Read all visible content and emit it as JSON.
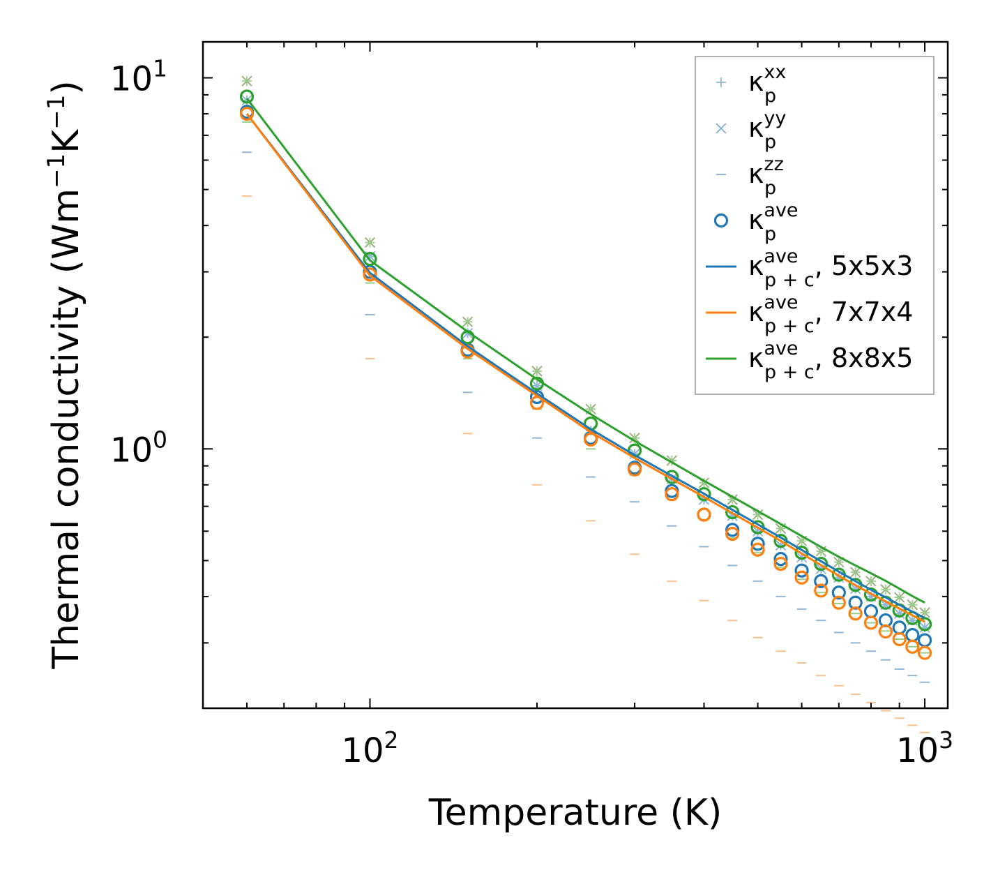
{
  "chart_data": {
    "type": "scatter",
    "title": "",
    "xlabel": "Temperature (K)",
    "ylabel": {
      "main": "Thermal conductivity (Wm",
      "sup1": "−1",
      "mid": "K",
      "sup2": "−1",
      "close": ")"
    },
    "xscale": "log",
    "yscale": "log",
    "xlim": [
      50,
      1100
    ],
    "ylim": [
      0.2,
      12.5
    ],
    "x_ticks": [
      {
        "value": 100,
        "base": "10",
        "exp": "2"
      },
      {
        "value": 1000,
        "base": "10",
        "exp": "3"
      }
    ],
    "y_ticks": [
      {
        "value": 1,
        "base": "10",
        "exp": "0"
      },
      {
        "value": 10,
        "base": "10",
        "exp": "1"
      }
    ],
    "legend_position": "top-right",
    "temperatures": [
      60,
      100,
      150,
      200,
      250,
      300,
      350,
      400,
      450,
      500,
      550,
      600,
      650,
      700,
      750,
      800,
      850,
      900,
      950,
      1000
    ],
    "legend": [
      {
        "marker": "plus",
        "color": "#8fb7d6",
        "label_base": "κ",
        "sub": "p",
        "sup": "xx",
        "suffix": ""
      },
      {
        "marker": "cross",
        "color": "#8fb7d6",
        "label_base": "κ",
        "sub": "p",
        "sup": "yy",
        "suffix": ""
      },
      {
        "marker": "dash",
        "color": "#8fb7d6",
        "label_base": "κ",
        "sub": "p",
        "sup": "zz",
        "suffix": ""
      },
      {
        "marker": "circle",
        "color": "#1f77b4",
        "label_base": "κ",
        "sub": "p",
        "sup": "ave",
        "suffix": ""
      },
      {
        "marker": "line",
        "color": "#1f77b4",
        "label_base": "κ",
        "sub": "p + c",
        "sup": "ave",
        "suffix": ", 5x5x3"
      },
      {
        "marker": "line",
        "color": "#ff7f0e",
        "label_base": "κ",
        "sub": "p + c",
        "sup": "ave",
        "suffix": ", 7x7x4"
      },
      {
        "marker": "line",
        "color": "#2ca02c",
        "label_base": "κ",
        "sub": "p + c",
        "sup": "ave",
        "suffix": ", 8x8x5"
      }
    ],
    "series": [
      {
        "name": "5x5x3",
        "color": "#1f77b4",
        "light_color": "#8fb7d6",
        "kxx": [
          8.7,
          3.3,
          2.05,
          1.48,
          1.12,
          0.97,
          0.83,
          0.73,
          0.66,
          0.6,
          0.55,
          0.51,
          0.475,
          0.45,
          0.42,
          0.4,
          0.38,
          0.36,
          0.345,
          0.33
        ],
        "kyy": [
          8.7,
          3.3,
          2.05,
          1.48,
          1.12,
          0.97,
          0.83,
          0.73,
          0.66,
          0.6,
          0.55,
          0.51,
          0.475,
          0.45,
          0.42,
          0.4,
          0.38,
          0.36,
          0.345,
          0.33
        ],
        "kzz": [
          6.3,
          2.3,
          1.42,
          1.07,
          0.84,
          0.72,
          0.62,
          0.545,
          0.485,
          0.44,
          0.4,
          0.37,
          0.345,
          0.32,
          0.3,
          0.285,
          0.27,
          0.255,
          0.245,
          0.235
        ],
        "kave": [
          8.1,
          3.0,
          1.85,
          1.38,
          1.07,
          0.89,
          0.77,
          0.665,
          0.605,
          0.555,
          0.505,
          0.47,
          0.44,
          0.41,
          0.385,
          0.365,
          0.345,
          0.33,
          0.315,
          0.305
        ],
        "kpc": [
          8.0,
          2.98,
          1.89,
          1.41,
          1.13,
          0.962,
          0.846,
          0.757,
          0.685,
          0.626,
          0.577,
          0.534,
          0.498,
          0.467,
          0.44,
          0.417,
          0.398,
          0.38,
          0.364,
          0.35
        ]
      },
      {
        "name": "7x7x4",
        "color": "#ff7f0e",
        "light_color": "#f8c08f",
        "kxx": [],
        "kyy": [],
        "kzz": [
          4.8,
          1.75,
          1.1,
          0.8,
          0.64,
          0.52,
          0.44,
          0.39,
          0.345,
          0.31,
          0.285,
          0.265,
          0.245,
          0.23,
          0.218,
          0.207,
          0.197,
          0.188,
          0.18,
          0.172
        ],
        "kave": [
          8.0,
          2.95,
          1.83,
          1.33,
          1.06,
          0.88,
          0.755,
          0.665,
          0.59,
          0.535,
          0.49,
          0.45,
          0.415,
          0.385,
          0.36,
          0.34,
          0.322,
          0.307,
          0.293,
          0.282
        ],
        "kpc": [
          8.0,
          2.93,
          1.86,
          1.39,
          1.11,
          0.945,
          0.83,
          0.742,
          0.671,
          0.613,
          0.565,
          0.522,
          0.486,
          0.455,
          0.429,
          0.407,
          0.388,
          0.371,
          0.356,
          0.342
        ]
      },
      {
        "name": "8x8x5",
        "color": "#2ca02c",
        "light_color": "#98cf8e",
        "cross_color": "#9bb07d",
        "kxx": [
          9.8,
          3.6,
          2.2,
          1.62,
          1.28,
          1.07,
          0.93,
          0.81,
          0.73,
          0.665,
          0.61,
          0.565,
          0.53,
          0.495,
          0.465,
          0.44,
          0.418,
          0.398,
          0.38,
          0.362
        ],
        "kyy": [
          9.8,
          3.6,
          2.2,
          1.62,
          1.28,
          1.07,
          0.93,
          0.81,
          0.73,
          0.665,
          0.61,
          0.565,
          0.53,
          0.495,
          0.465,
          0.44,
          0.418,
          0.398,
          0.38,
          0.362
        ],
        "kzz": [
          7.6,
          2.8,
          1.75,
          1.28,
          1.0,
          0.85,
          0.73,
          0.645,
          0.575,
          0.525,
          0.48,
          0.445,
          0.41,
          0.383,
          0.36,
          0.34,
          0.323,
          0.307,
          0.293,
          0.282
        ],
        "kave": [
          8.9,
          3.25,
          2.0,
          1.5,
          1.17,
          0.99,
          0.84,
          0.755,
          0.675,
          0.615,
          0.565,
          0.525,
          0.49,
          0.458,
          0.43,
          0.405,
          0.385,
          0.367,
          0.35,
          0.337
        ],
        "kpc": [
          8.8,
          3.22,
          2.07,
          1.54,
          1.24,
          1.05,
          0.92,
          0.82,
          0.743,
          0.68,
          0.627,
          0.582,
          0.544,
          0.512,
          0.485,
          0.462,
          0.441,
          0.42,
          0.401,
          0.385
        ]
      }
    ]
  }
}
